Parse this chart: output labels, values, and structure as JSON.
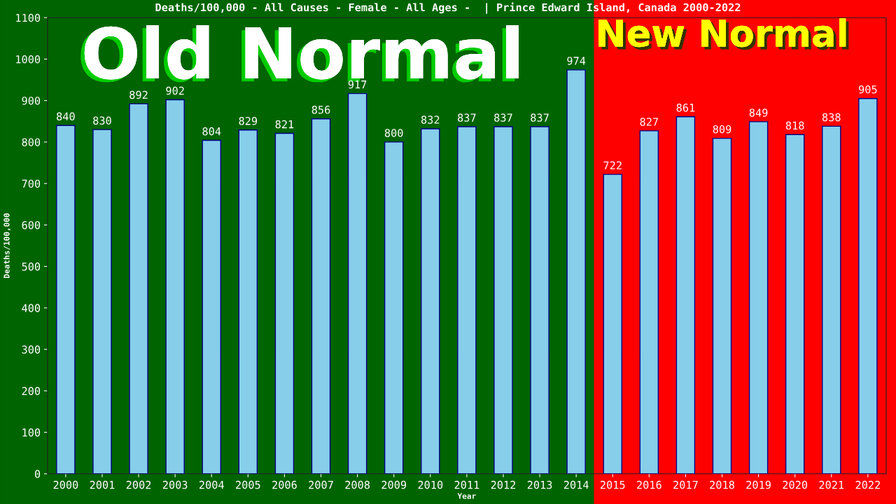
{
  "chart_data": {
    "type": "bar",
    "title": "Deaths/100,000 - All Causes - Female - All Ages -  | Prince Edward Island, Canada 2000-2022",
    "xlabel": "Year",
    "ylabel": "Deaths/100,000",
    "categories": [
      "2000",
      "2001",
      "2002",
      "2003",
      "2004",
      "2005",
      "2006",
      "2007",
      "2008",
      "2009",
      "2010",
      "2011",
      "2012",
      "2013",
      "2014",
      "2015",
      "2016",
      "2017",
      "2018",
      "2019",
      "2020",
      "2021",
      "2022"
    ],
    "values": [
      840,
      830,
      892,
      902,
      804,
      829,
      821,
      856,
      917,
      800,
      832,
      837,
      837,
      837,
      974,
      722,
      827,
      861,
      809,
      849,
      818,
      838,
      905
    ],
    "color": "#87ceeb",
    "ylim": [
      0,
      1100
    ],
    "yticks": [
      0,
      100,
      200,
      300,
      400,
      500,
      600,
      700,
      800,
      900,
      1000,
      1100
    ],
    "grid": false,
    "data_labels": true,
    "bands": [
      {
        "axis": "x",
        "from": "2000",
        "to": "2014",
        "label": "Old Normal",
        "color": "#006400"
      },
      {
        "axis": "x",
        "from": "2015",
        "to": "2022",
        "label": "New Normal",
        "color": "#ff0000"
      }
    ]
  }
}
